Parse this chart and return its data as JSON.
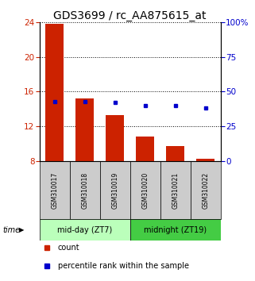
{
  "title": "GDS3699 / rc_AA875615_at",
  "categories": [
    "GSM310017",
    "GSM310018",
    "GSM310019",
    "GSM310020",
    "GSM310021",
    "GSM310022"
  ],
  "bar_bottom": 8,
  "bar_values": [
    23.8,
    15.2,
    13.3,
    10.8,
    9.7,
    8.2
  ],
  "percentile_values": [
    43,
    43,
    42,
    40,
    40,
    38
  ],
  "ylim_left": [
    8,
    24
  ],
  "ylim_right": [
    0,
    100
  ],
  "yticks_left": [
    8,
    12,
    16,
    20,
    24
  ],
  "yticks_right": [
    0,
    25,
    50,
    75,
    100
  ],
  "bar_color": "#cc2200",
  "percentile_color": "#0000cc",
  "group1_label": "mid-day (ZT7)",
  "group2_label": "midnight (ZT19)",
  "group1_indices": [
    0,
    1,
    2
  ],
  "group2_indices": [
    3,
    4,
    5
  ],
  "group1_bg": "#bbffbb",
  "group2_bg": "#44cc44",
  "sample_bg": "#cccccc",
  "legend_count_label": "count",
  "legend_pct_label": "percentile rank within the sample",
  "time_label": "time",
  "title_fontsize": 10,
  "tick_fontsize": 7.5,
  "bar_width": 0.6
}
